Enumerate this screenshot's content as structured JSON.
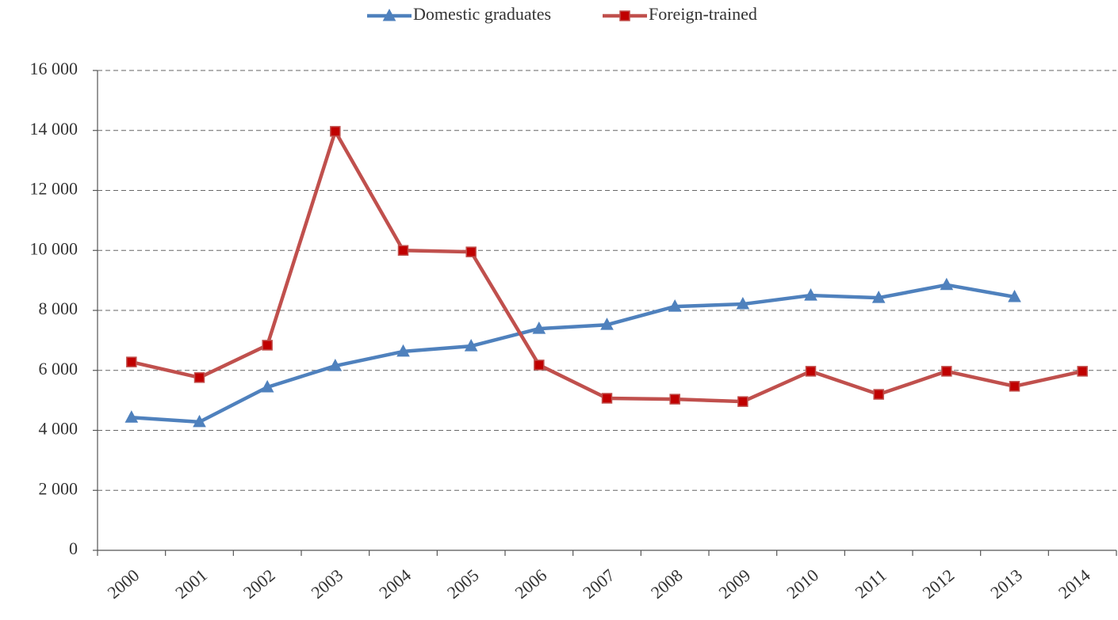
{
  "chart_data": {
    "type": "line",
    "categories": [
      "2000",
      "2001",
      "2002",
      "2003",
      "2004",
      "2005",
      "2006",
      "2007",
      "2008",
      "2009",
      "2010",
      "2011",
      "2012",
      "2013",
      "2014"
    ],
    "series": [
      {
        "name": "Domestic graduates",
        "color": "#4f81bd",
        "marker": "triangle",
        "values": [
          4430,
          4280,
          5440,
          6150,
          6630,
          6810,
          7390,
          7520,
          8130,
          8210,
          8500,
          8420,
          8850,
          8450,
          null
        ]
      },
      {
        "name": "Foreign-trained",
        "color": "#c0504d",
        "marker": "square",
        "values": [
          6280,
          5760,
          6840,
          13970,
          10000,
          9950,
          6180,
          5070,
          5040,
          4960,
          5970,
          5200,
          5970,
          5470,
          5970
        ]
      }
    ],
    "ylim": [
      0,
      16000
    ],
    "yticks": [
      0,
      {
        "value": 2000,
        "label": "2 000"
      },
      {
        "value": 4000,
        "label": "4 000"
      },
      {
        "value": 6000,
        "label": "6 000"
      },
      {
        "value": 8000,
        "label": "8 000"
      },
      {
        "value": 10000,
        "label": "10 000"
      },
      {
        "value": 12000,
        "label": "12 000"
      },
      {
        "value": 14000,
        "label": "14 000"
      },
      {
        "value": 16000,
        "label": "16 000"
      }
    ],
    "grid": true,
    "legend": "top"
  }
}
